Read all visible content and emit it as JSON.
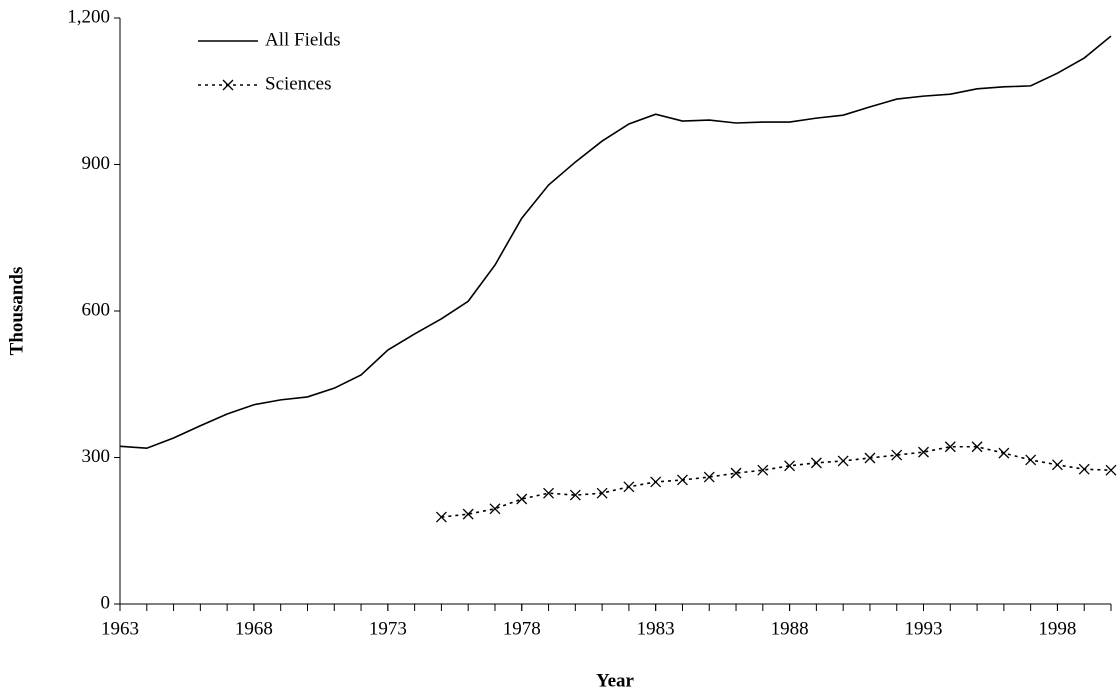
{
  "chart_data": {
    "type": "line",
    "xlabel": "Year",
    "ylabel": "Thousands",
    "x": [
      1963,
      1964,
      1965,
      1966,
      1967,
      1968,
      1969,
      1970,
      1971,
      1972,
      1973,
      1974,
      1975,
      1976,
      1977,
      1978,
      1979,
      1980,
      1981,
      1982,
      1983,
      1984,
      1985,
      1986,
      1987,
      1988,
      1989,
      1990,
      1991,
      1992,
      1993,
      1994,
      1995,
      1996,
      1997,
      1998,
      1999,
      2000
    ],
    "series": [
      {
        "name": "All Fields",
        "color": "#000000",
        "line_style": "solid",
        "marker": "none",
        "values": [
          323,
          319,
          340,
          365,
          389,
          408,
          418,
          424,
          442,
          469,
          520,
          553,
          584,
          620,
          694,
          790,
          858,
          905,
          948,
          983,
          1003,
          989,
          991,
          985,
          987,
          987,
          995,
          1001,
          1018,
          1034,
          1040,
          1044,
          1055,
          1059,
          1061,
          1087,
          1118,
          1163
        ]
      },
      {
        "name": "Sciences",
        "color": "#000000",
        "line_style": "dotted",
        "marker": "x",
        "values": [
          null,
          null,
          null,
          null,
          null,
          null,
          null,
          null,
          null,
          null,
          null,
          null,
          178,
          184,
          195,
          215,
          227,
          223,
          227,
          240,
          250,
          254,
          260,
          268,
          274,
          283,
          289,
          293,
          299,
          305,
          311,
          322,
          322,
          309,
          295,
          285,
          276,
          274
        ]
      }
    ],
    "xlim": [
      1963,
      2000
    ],
    "xticks": [
      1963,
      1968,
      1973,
      1978,
      1983,
      1988,
      1993,
      1998
    ],
    "ylim": [
      0,
      1200
    ],
    "yticks": [
      0,
      300,
      600,
      900,
      {
        "value": 1200,
        "label": "1,200"
      }
    ],
    "grid": false,
    "legend": "top-left"
  }
}
